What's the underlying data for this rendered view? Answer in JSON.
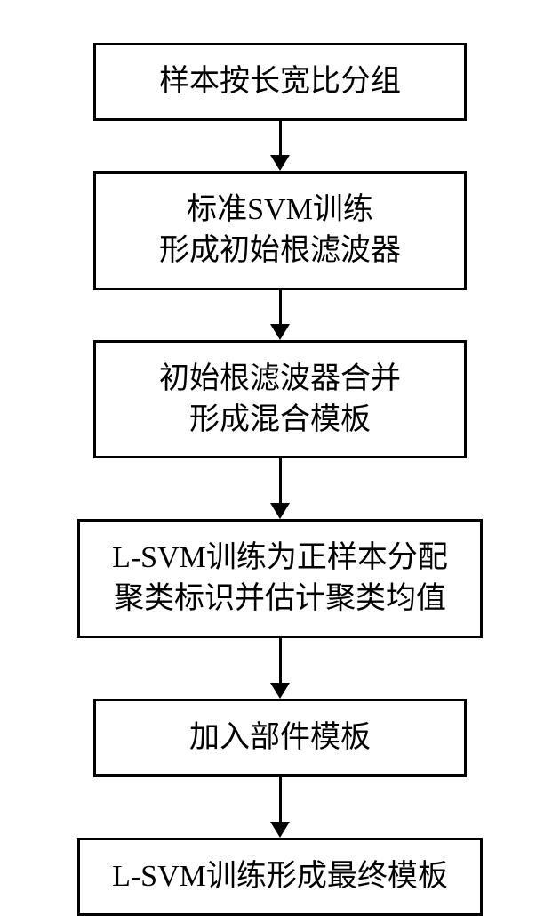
{
  "flow": {
    "type": "flowchart",
    "direction": "top-to-bottom",
    "box_border_color": "#000000",
    "box_border_width": 3,
    "box_bg_color": "#ffffff",
    "text_color": "#000000",
    "font_size": 34,
    "arrow_color": "#000000",
    "arrow_line_width": 3,
    "arrow_head_size": 18,
    "steps": [
      {
        "lines": [
          "样本按长宽比分组"
        ],
        "arrow_len": 38
      },
      {
        "lines": [
          "标准SVM训练",
          "形成初始根滤波器"
        ],
        "arrow_len": 38
      },
      {
        "lines": [
          "初始根滤波器合并",
          "形成混合模板"
        ],
        "arrow_len": 50
      },
      {
        "lines": [
          "L-SVM训练为正样本分配",
          "聚类标识并估计聚类均值"
        ],
        "arrow_len": 50
      },
      {
        "lines": [
          "加入部件模板"
        ],
        "arrow_len": 50
      },
      {
        "lines": [
          "L-SVM训练形成最终模板"
        ],
        "arrow_len": 0
      }
    ]
  }
}
